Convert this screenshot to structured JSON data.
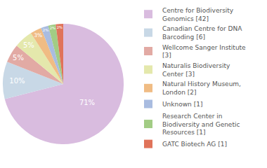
{
  "chart_data": {
    "type": "pie",
    "categories": [
      "Centre for Biodiversity Genomics [42]",
      "Canadian Centre for DNA Barcoding [6]",
      "Wellcome Sanger Institute [3]",
      "Naturalis Biodiversity Center [3]",
      "Natural History Museum, London [2]",
      "Unknown [1]",
      "Research Center in Biodiversity and Genetic Resources [1]",
      "GATC Biotech AG [1]"
    ],
    "values": [
      71,
      10,
      5,
      5,
      3,
      2,
      2,
      2
    ],
    "value_labels": [
      "71%",
      "10%",
      "5%",
      "5%",
      "3%",
      "2%",
      "2%",
      "2%"
    ],
    "colors": [
      "#d9bcdf",
      "#c8d8e6",
      "#e2aaa4",
      "#e4e8ac",
      "#f0bc84",
      "#a9bce0",
      "#a2cc84",
      "#e0735a"
    ],
    "data_labels": true,
    "legend": "right"
  }
}
